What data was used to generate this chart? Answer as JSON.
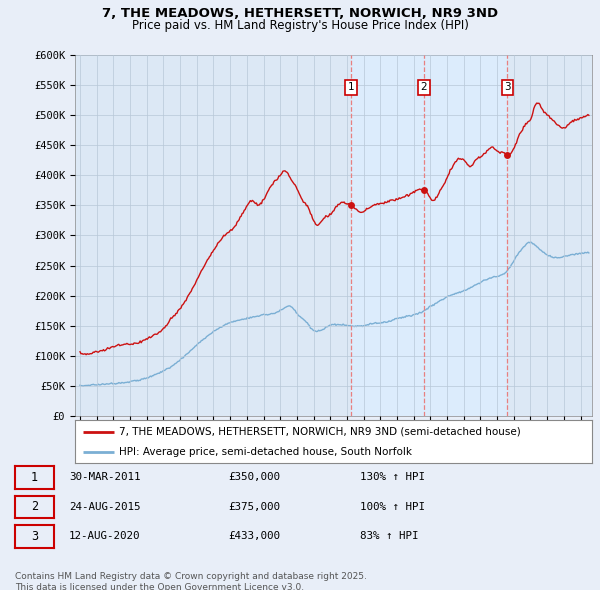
{
  "title1": "7, THE MEADOWS, HETHERSETT, NORWICH, NR9 3ND",
  "title2": "Price paid vs. HM Land Registry's House Price Index (HPI)",
  "ylim": [
    0,
    600000
  ],
  "yticks": [
    0,
    50000,
    100000,
    150000,
    200000,
    250000,
    300000,
    350000,
    400000,
    450000,
    500000,
    550000,
    600000
  ],
  "ytick_labels": [
    "£0",
    "£50K",
    "£100K",
    "£150K",
    "£200K",
    "£250K",
    "£300K",
    "£350K",
    "£400K",
    "£450K",
    "£500K",
    "£550K",
    "£600K"
  ],
  "xlim_start": 1994.7,
  "xlim_end": 2025.7,
  "xticks": [
    1995,
    1996,
    1997,
    1998,
    1999,
    2000,
    2001,
    2002,
    2003,
    2004,
    2005,
    2006,
    2007,
    2008,
    2009,
    2010,
    2011,
    2012,
    2013,
    2014,
    2015,
    2016,
    2017,
    2018,
    2019,
    2020,
    2021,
    2022,
    2023,
    2024,
    2025
  ],
  "sale_dates": [
    2011.25,
    2015.62,
    2020.62
  ],
  "sale_prices": [
    350000,
    375000,
    433000
  ],
  "sale_labels": [
    "1",
    "2",
    "3"
  ],
  "hpi_color": "#7bafd4",
  "price_color": "#cc1111",
  "vline_color": "#e88080",
  "shade_color": "#ddeeff",
  "legend_red_label": "7, THE MEADOWS, HETHERSETT, NORWICH, NR9 3ND (semi-detached house)",
  "legend_blue_label": "HPI: Average price, semi-detached house, South Norfolk",
  "table_rows": [
    [
      "1",
      "30-MAR-2011",
      "£350,000",
      "130% ↑ HPI"
    ],
    [
      "2",
      "24-AUG-2015",
      "£375,000",
      "100% ↑ HPI"
    ],
    [
      "3",
      "12-AUG-2020",
      "£433,000",
      "83% ↑ HPI"
    ]
  ],
  "footer_text": "Contains HM Land Registry data © Crown copyright and database right 2025.\nThis data is licensed under the Open Government Licence v3.0.",
  "background_color": "#e8eef8",
  "plot_bg_color": "#dce8f5"
}
